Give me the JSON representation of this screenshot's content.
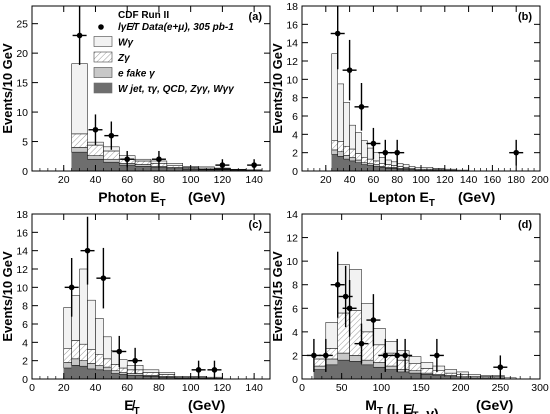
{
  "legend": {
    "title": "CDF Run II",
    "entries": [
      {
        "key": "data",
        "label": "lγE̸T Data(e+μ), 305 pb-1"
      },
      {
        "key": "wg",
        "label": "Wγ",
        "color": "#f2f2f2"
      },
      {
        "key": "zg",
        "label": "Zγ",
        "color": "#ffffff",
        "hatch": true
      },
      {
        "key": "efake",
        "label": "e fake γ",
        "color": "#c8c8c8"
      },
      {
        "key": "bkg",
        "label": "W jet, τγ, QCD, Zγγ, Wγγ",
        "color": "#6e6e6e"
      }
    ]
  },
  "chart_data": [
    {
      "type": "bar",
      "panel": "(a)",
      "xlabel": "Photon E_T (GeV)",
      "ylabel": "Events/10 GeV",
      "xlim": [
        0,
        150
      ],
      "ylim": [
        0,
        28
      ],
      "xticks": [
        20,
        40,
        60,
        80,
        100,
        120,
        140
      ],
      "yticks": [
        0,
        5,
        10,
        15,
        20,
        25
      ],
      "bin_edges": [
        25,
        35,
        45,
        55,
        65,
        75,
        85,
        95,
        105,
        115,
        125,
        135,
        145
      ],
      "stack": {
        "bkg": [
          3.2,
          2.0,
          1.5,
          1.0,
          0.8,
          0.6,
          0.4,
          0.3,
          0.2,
          0.2,
          0.1,
          0.1
        ],
        "efake": [
          0.8,
          0.6,
          0.5,
          0.3,
          0.3,
          0.2,
          0.2,
          0.1,
          0.1,
          0.1,
          0.0,
          0.0
        ],
        "zg": [
          2.3,
          1.8,
          1.4,
          0.7,
          0.6,
          0.5,
          0.3,
          0.2,
          0.2,
          0.1,
          0.1,
          0.1
        ],
        "wg": [
          11.9,
          0.5,
          0.7,
          0.6,
          0.3,
          0.4,
          0.4,
          0.2,
          0.2,
          0.1,
          0.1,
          0.0
        ]
      },
      "data": {
        "x": [
          30,
          40,
          50,
          60,
          80,
          120,
          140
        ],
        "y": [
          23,
          7,
          6,
          2,
          2,
          1,
          1
        ],
        "err": [
          5,
          2.6,
          2.4,
          1.4,
          1.4,
          1.0,
          1.0
        ]
      }
    },
    {
      "type": "bar",
      "panel": "(b)",
      "xlabel": "Lepton E_T (GeV)",
      "ylabel": "Events/10 GeV",
      "xlim": [
        0,
        200
      ],
      "ylim": [
        0,
        18
      ],
      "xticks": [
        20,
        40,
        60,
        80,
        100,
        120,
        140,
        160,
        180,
        200
      ],
      "yticks": [
        0,
        2,
        4,
        6,
        8,
        10,
        12,
        14,
        16,
        18
      ],
      "bin_edges": [
        25,
        30,
        35,
        40,
        45,
        50,
        55,
        60,
        65,
        70,
        75,
        80,
        85,
        90,
        95,
        100,
        110,
        120,
        130,
        140
      ],
      "stack": {
        "bkg": [
          1.8,
          1.6,
          1.3,
          1.1,
          0.9,
          0.7,
          0.6,
          0.5,
          0.4,
          0.3,
          0.3,
          0.2,
          0.2,
          0.2,
          0.1,
          0.1,
          0.1,
          0.1,
          0.0
        ],
        "efake": [
          0.5,
          0.5,
          0.4,
          0.4,
          0.3,
          0.2,
          0.2,
          0.2,
          0.1,
          0.1,
          0.1,
          0.1,
          0.1,
          0.0,
          0.0,
          0.0,
          0.0,
          0.0,
          0.0
        ],
        "zg": [
          1.0,
          1.1,
          1.0,
          0.9,
          0.7,
          0.6,
          0.5,
          0.4,
          0.3,
          0.3,
          0.2,
          0.2,
          0.1,
          0.1,
          0.1,
          0.1,
          0.1,
          0.0,
          0.0
        ],
        "wg": [
          9.5,
          6.3,
          4.8,
          2.6,
          2.3,
          1.8,
          1.2,
          0.9,
          0.7,
          0.5,
          0.4,
          0.3,
          0.3,
          0.2,
          0.2,
          0.2,
          0.1,
          0.1,
          0.1
        ]
      },
      "data": {
        "x": [
          30,
          40,
          50,
          60,
          70,
          80,
          180
        ],
        "y": [
          15,
          11,
          7,
          3,
          2,
          2,
          2
        ],
        "err": [
          3.9,
          3.3,
          2.6,
          1.7,
          1.4,
          1.4,
          1.4
        ]
      }
    },
    {
      "type": "bar",
      "panel": "(c)",
      "xlabel": "E̸_T (GeV)",
      "ylabel": "Events/10 GeV",
      "xlim": [
        0,
        150
      ],
      "ylim": [
        0,
        18
      ],
      "xticks": [
        0,
        20,
        40,
        60,
        80,
        100,
        120,
        140
      ],
      "yticks": [
        0,
        2,
        4,
        6,
        8,
        10,
        12,
        14,
        16,
        18
      ],
      "bin_edges": [
        20,
        25,
        30,
        35,
        40,
        45,
        50,
        55,
        60,
        70,
        80,
        90,
        100,
        110,
        120
      ],
      "stack": {
        "bkg": [
          1.2,
          1.5,
          1.4,
          1.1,
          1.0,
          0.9,
          0.6,
          0.5,
          0.4,
          0.3,
          0.2,
          0.1,
          0.1,
          0.1
        ],
        "efake": [
          0.6,
          0.7,
          0.6,
          0.6,
          0.5,
          0.4,
          0.3,
          0.2,
          0.2,
          0.1,
          0.1,
          0.0,
          0.0,
          0.0
        ],
        "zg": [
          1.5,
          2.0,
          1.8,
          1.5,
          1.2,
          0.9,
          0.7,
          0.5,
          0.4,
          0.3,
          0.2,
          0.1,
          0.1,
          0.1
        ],
        "wg": [
          4.5,
          4.9,
          8.2,
          5.4,
          3.9,
          2.4,
          1.5,
          0.9,
          0.5,
          0.3,
          0.2,
          0.1,
          0.1,
          0.0
        ]
      },
      "data": {
        "x": [
          25,
          35,
          45,
          55,
          65,
          105,
          115
        ],
        "y": [
          10,
          14,
          11,
          3,
          2,
          1,
          1
        ],
        "err": [
          3.2,
          3.7,
          3.3,
          1.7,
          1.4,
          1.0,
          1.0
        ]
      }
    },
    {
      "type": "bar",
      "panel": "(d)",
      "xlabel": "M_T (l, E̸_T, γ) (GeV)",
      "ylabel": "Events/15 GeV",
      "xlim": [
        0,
        300
      ],
      "ylim": [
        0,
        14
      ],
      "xticks": [
        0,
        50,
        100,
        150,
        200,
        250,
        300
      ],
      "yticks": [
        0,
        2,
        4,
        6,
        8,
        10,
        12,
        14
      ],
      "bin_edges": [
        15,
        30,
        45,
        60,
        75,
        90,
        105,
        120,
        135,
        150,
        165,
        180,
        195,
        210,
        225,
        240,
        255,
        270
      ],
      "stack": {
        "bkg": [
          0.8,
          1.2,
          1.6,
          1.5,
          1.2,
          1.0,
          0.8,
          0.6,
          0.5,
          0.4,
          0.3,
          0.2,
          0.2,
          0.1,
          0.1,
          0.1,
          0.0
        ],
        "efake": [
          0.3,
          0.5,
          0.6,
          0.5,
          0.4,
          0.4,
          0.3,
          0.2,
          0.2,
          0.1,
          0.1,
          0.1,
          0.0,
          0.0,
          0.0,
          0.0,
          0.0
        ],
        "zg": [
          0.6,
          0.9,
          3.4,
          3.8,
          2.4,
          1.5,
          1.1,
          0.8,
          0.6,
          0.4,
          0.3,
          0.2,
          0.2,
          0.1,
          0.1,
          0.1,
          0.1
        ],
        "wg": [
          0.3,
          2.2,
          4.1,
          3.5,
          2.4,
          1.4,
          1.0,
          0.8,
          0.6,
          0.5,
          0.4,
          0.3,
          0.2,
          0.2,
          0.1,
          0.1,
          0.0
        ],
        "wg_top_only": true
      },
      "data": {
        "x": [
          15,
          30,
          45,
          55,
          60,
          75,
          90,
          105,
          120,
          130,
          170,
          250
        ],
        "y": [
          2,
          2,
          8,
          7,
          6,
          3,
          5,
          2,
          2,
          2,
          2,
          1
        ],
        "err": [
          1.4,
          1.4,
          2.8,
          2.6,
          2.4,
          1.7,
          2.2,
          1.4,
          1.4,
          1.4,
          1.4,
          1.0
        ]
      }
    }
  ]
}
